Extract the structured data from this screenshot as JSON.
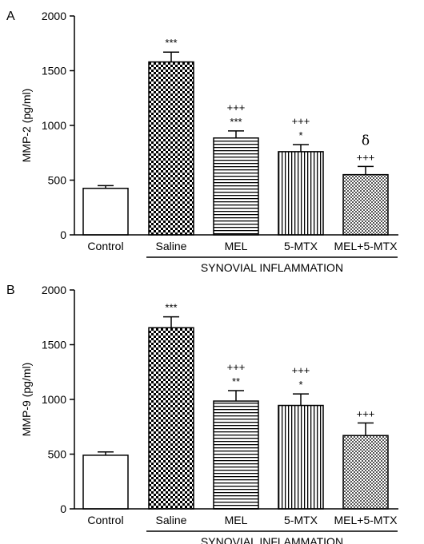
{
  "chart_data": [
    {
      "type": "bar",
      "panel_label": "A",
      "ylabel": "MMP-2 (pg/ml)",
      "ylim": [
        0,
        2000
      ],
      "yticks": [
        "0",
        "500",
        "1000",
        "1500",
        "2000"
      ],
      "categories": [
        "Control",
        "Saline",
        "MEL",
        "5-MTX",
        "MEL+5-MTX"
      ],
      "values": [
        425,
        1580,
        885,
        760,
        550
      ],
      "errors": [
        25,
        90,
        65,
        65,
        75
      ],
      "patterns": [
        "open",
        "checker",
        "horizontal",
        "vertical",
        "fine-checker"
      ],
      "annotations": [
        [],
        [
          "***"
        ],
        [
          "***",
          "+++"
        ],
        [
          "*",
          "+++"
        ],
        [
          "+++",
          "δ"
        ]
      ],
      "group_label": "SYNOVIAL INFLAMMATION"
    },
    {
      "type": "bar",
      "panel_label": "B",
      "ylabel": "MMP-9 (pg/ml)",
      "ylim": [
        0,
        2000
      ],
      "yticks": [
        "0",
        "500",
        "1000",
        "1500",
        "2000"
      ],
      "categories": [
        "Control",
        "Saline",
        "MEL",
        "5-MTX",
        "MEL+5-MTX"
      ],
      "values": [
        490,
        1655,
        985,
        945,
        670
      ],
      "errors": [
        30,
        100,
        95,
        105,
        115
      ],
      "patterns": [
        "open",
        "checker",
        "horizontal",
        "vertical",
        "fine-checker"
      ],
      "annotations": [
        [],
        [
          "***"
        ],
        [
          "**",
          "+++"
        ],
        [
          "*",
          "+++"
        ],
        [
          "+++"
        ]
      ],
      "group_label": "SYNOVIAL INFLAMMATION"
    }
  ]
}
